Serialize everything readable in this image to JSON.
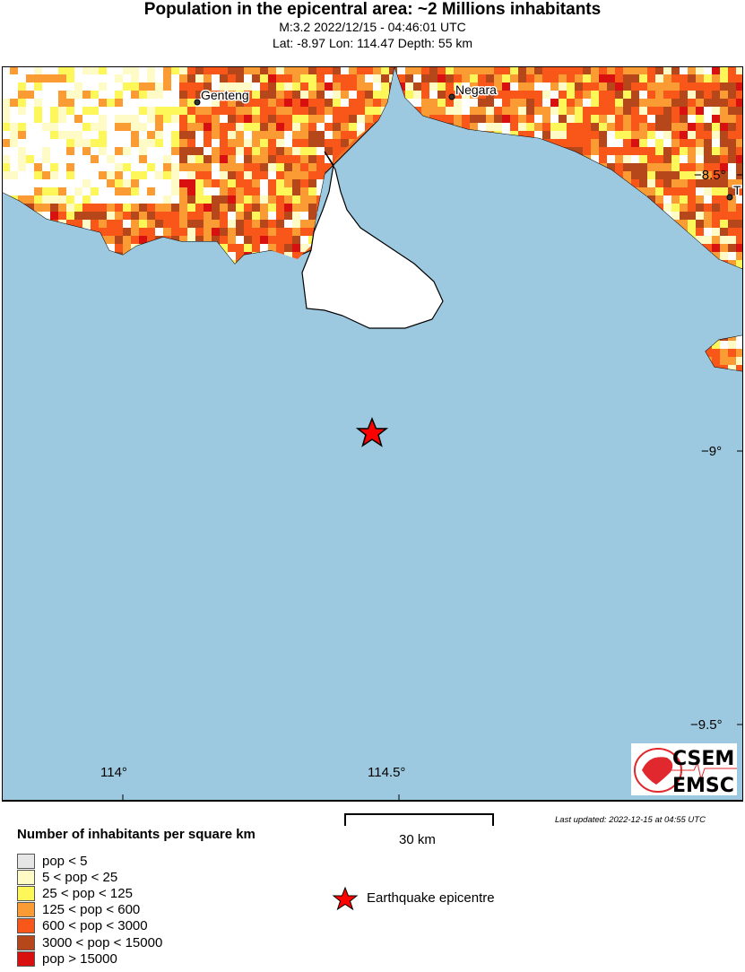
{
  "header": {
    "title": "Population in the epicentral area: ~2 Millions inhabitants",
    "event": "M:3.2 2022/12/15 - 04:46:01 UTC",
    "location": "Lat: -8.97 Lon: 114.47 Depth: 55 km"
  },
  "map": {
    "sea_color": "#9dc9e0",
    "lon_ticks": [
      "114°",
      "114.5°"
    ],
    "lat_ticks": [
      "−8.5°",
      "−9°",
      "−9.5°"
    ],
    "cities": [
      {
        "name": "Genteng"
      },
      {
        "name": "Negara"
      },
      {
        "name": "T"
      }
    ],
    "epicenter": {
      "lat": -8.97,
      "lon": 114.47,
      "color": "#ff0000"
    },
    "logo": {
      "top": "CSEM",
      "bottom": "EMSC",
      "color": "#e0282e"
    }
  },
  "scale_bar": {
    "label": "30 km"
  },
  "last_updated": "Last updated: 2022-12-15 at 04:55 UTC",
  "legend": {
    "title": "Number of inhabitants per square km",
    "items": [
      {
        "label": "pop < 5",
        "color": "#e6e6e6"
      },
      {
        "label": "5 < pop < 25",
        "color": "#fffbc6"
      },
      {
        "label": "25 < pop < 125",
        "color": "#fdf75a"
      },
      {
        "label": "125 < pop < 600",
        "color": "#fb9b33"
      },
      {
        "label": "600 < pop < 3000",
        "color": "#f9561a"
      },
      {
        "label": "3000 < pop < 15000",
        "color": "#b5471b"
      },
      {
        "label": "pop > 15000",
        "color": "#d81010"
      }
    ],
    "epicentre_label": "Earthquake epicentre"
  }
}
